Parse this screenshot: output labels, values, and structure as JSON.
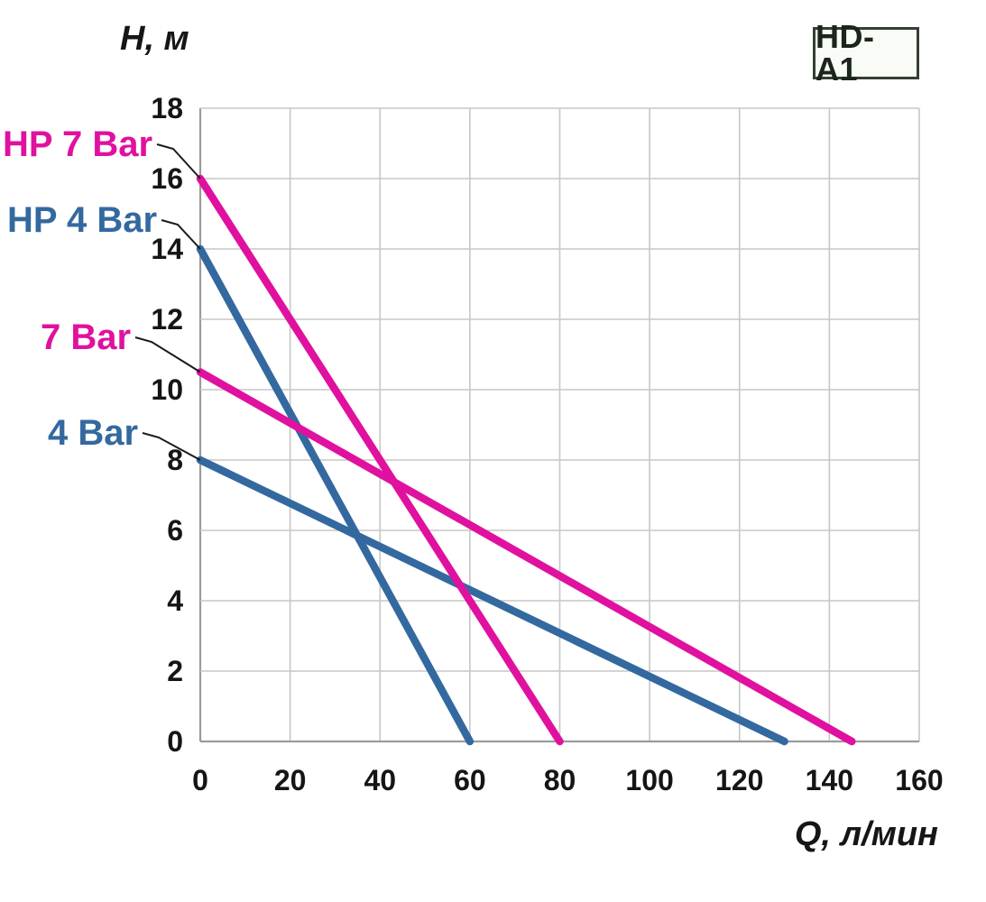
{
  "badge": {
    "label": "HD-A1"
  },
  "colors": {
    "magenta": "#e0119f",
    "blue": "#33699f",
    "grid": "#c7c7c7",
    "axis": "#9b9b9b",
    "tick_text": "#151515",
    "leader": "#1a1a1a",
    "badge_border": "#333f33",
    "badge_text": "#1b251b",
    "badge_bg": "#f9fbf7"
  },
  "chart_data": {
    "type": "line",
    "title": "",
    "xlabel": "Q, л/мин",
    "ylabel": "H, м",
    "xlim": [
      0,
      160
    ],
    "ylim": [
      0,
      18
    ],
    "xticks": [
      0,
      20,
      40,
      60,
      80,
      100,
      120,
      140,
      160
    ],
    "yticks": [
      0,
      2,
      4,
      6,
      8,
      10,
      12,
      14,
      16,
      18
    ],
    "grid": true,
    "legend_position": "left-annotations-with-leader-lines",
    "series": [
      {
        "name": "HP 7 Bar",
        "color": "#e0119f",
        "points": [
          [
            0,
            16
          ],
          [
            80,
            0
          ]
        ]
      },
      {
        "name": "HP 4 Bar",
        "color": "#33699f",
        "points": [
          [
            0,
            14
          ],
          [
            60,
            0
          ]
        ]
      },
      {
        "name": "7 Bar",
        "color": "#e0119f",
        "points": [
          [
            0,
            10.5
          ],
          [
            145,
            0
          ]
        ]
      },
      {
        "name": "4 Bar",
        "color": "#33699f",
        "points": [
          [
            0,
            8
          ],
          [
            130,
            0
          ]
        ]
      }
    ]
  }
}
